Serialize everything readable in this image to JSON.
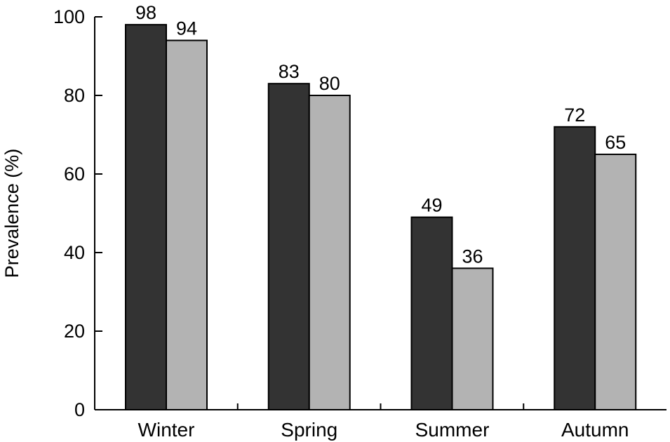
{
  "chart_data": {
    "type": "bar",
    "categories": [
      "Winter",
      "Spring",
      "Summer",
      "Autumn"
    ],
    "series": [
      {
        "values": [
          98,
          83,
          49,
          72
        ],
        "color": "#333333"
      },
      {
        "values": [
          94,
          80,
          36,
          65
        ],
        "color": "#b3b3b3"
      }
    ],
    "ylabel": "Prevalence (%)",
    "ylim": [
      0,
      100
    ],
    "yticks": [
      0,
      20,
      40,
      60,
      80,
      100
    ],
    "grid": false,
    "legend": "none",
    "data_labels": true
  }
}
